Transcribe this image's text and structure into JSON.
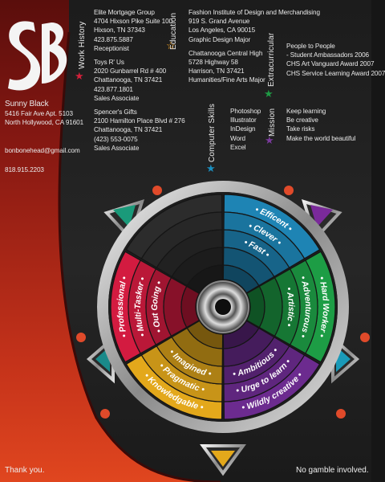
{
  "person": {
    "name": "Sunny Black",
    "address": [
      "5416 Fair Ave Apt. 5103",
      "North Hollywood, CA 91601"
    ],
    "email": "bonbonehead@gmail.com",
    "phone": "818.915.2203",
    "monogram": "SB"
  },
  "sections": {
    "work_history": "Work History",
    "education": "Education",
    "extracurricular": "Extracurricular",
    "computer_skills": "Computer Skills",
    "mission": "Mission"
  },
  "work": [
    {
      "company": "Elite Mortgage Group",
      "lines": [
        "4704 Hixson Pike Suite 100",
        "Hixson, TN 37343",
        "423.875.5887"
      ],
      "role": "Receptionist"
    },
    {
      "company": "Toys R' Us",
      "lines": [
        "2020 Gunbarrel Rd # 400",
        "Chattanooga, TN 37421",
        "423.877.1801"
      ],
      "role": "Sales Associate"
    },
    {
      "company": "Spencer's Gifts",
      "lines": [
        "2100 Hamilton Place Blvd # 276",
        "Chattanooga, TN 37421",
        "(423) 553-0075"
      ],
      "role": "Sales Associate"
    }
  ],
  "education": [
    {
      "school": "Fashion Institute of Design and Merchandising",
      "lines": [
        "919 S. Grand Avenue",
        "Los Angeles, CA 90015",
        "Graphic Design Major"
      ]
    },
    {
      "school": "Chattanooga Central High",
      "lines": [
        "5728 Highway 58",
        "Harrison, TN 37421",
        "Humanities/Fine Arts Major"
      ]
    }
  ],
  "extracurricular": [
    "People to People",
    "- Student Ambassadors 2006",
    "CHS Art Vanguard Award 2007",
    "CHS Service Learning Award 2007"
  ],
  "computer_skills": [
    "Photoshop",
    "Illustrator",
    "InDesign",
    "Word",
    "Excel"
  ],
  "mission": [
    "Keep learning",
    "Be creative",
    "Take risks",
    "Make the world beautiful"
  ],
  "wheel": {
    "segments": [
      {
        "color": "#1e84b4",
        "words": [
          "Efficent",
          "Clever",
          "Fast"
        ]
      },
      {
        "color": "#1d9d45",
        "words": [
          "Hard Worker",
          "Adventurous",
          "Artistic"
        ]
      },
      {
        "color": "#6c2b8f",
        "words": [
          "Wildly creative",
          "Urge to learn",
          "Ambitious"
        ]
      },
      {
        "color": "#e3a81b",
        "words": [
          "Knowledgable",
          "Pragmatic",
          "Imagined"
        ]
      },
      {
        "color": "#d31b40",
        "words": [
          "Professional",
          "Multi-Tasker",
          "Out Going"
        ]
      },
      {
        "color": "#2c2c2c",
        "words": []
      }
    ]
  },
  "footer": {
    "left": "Thank you.",
    "right": "No gamble involved."
  },
  "colors": {
    "accent_red": "#d8351f",
    "work": "#d3203a",
    "education": "#f0a020",
    "extracurricular": "#1f9a45",
    "computer": "#1a8fc0",
    "mission": "#7a3a9c"
  }
}
